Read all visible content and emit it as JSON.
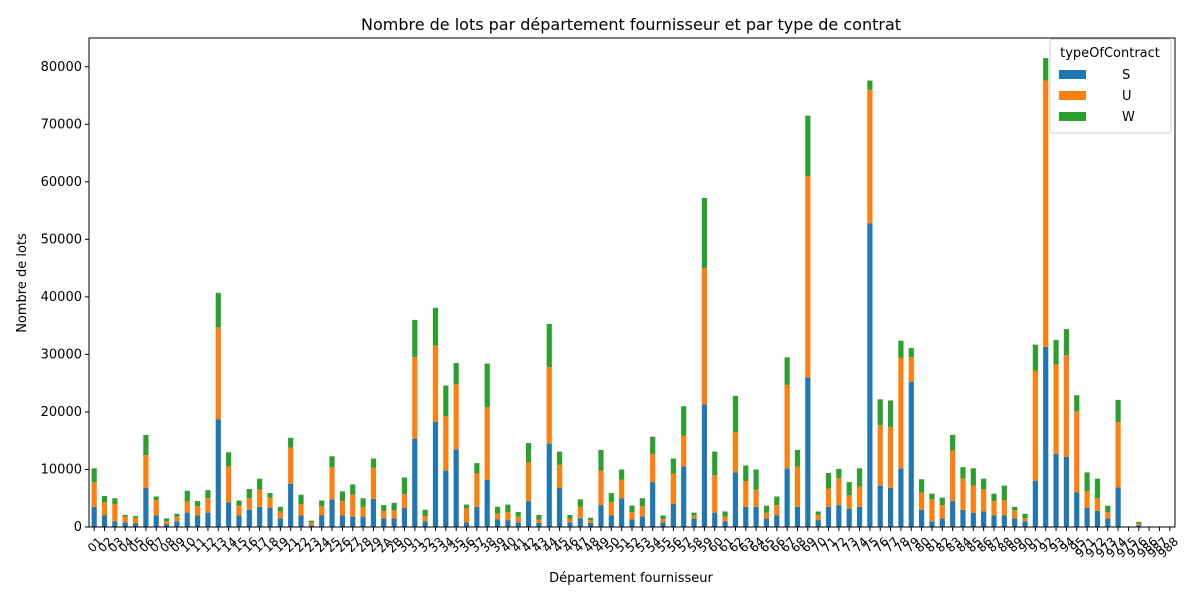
{
  "chart_data": {
    "type": "bar",
    "stacked": true,
    "title": "Nombre de lots par département fournisseur et par type de contrat",
    "xlabel": "Département fournisseur",
    "ylabel": "Nombre de lots",
    "ylim": [
      0,
      85000
    ],
    "yticks": [
      0,
      10000,
      20000,
      30000,
      40000,
      50000,
      60000,
      70000,
      80000
    ],
    "grid": false,
    "legend_title": "typeOfContract",
    "legend_position": "top-right",
    "colors": {
      "S": "#1f77b4",
      "U": "#ff7f0e",
      "W": "#2ca02c"
    },
    "categories": [
      "01",
      "02",
      "03",
      "04",
      "05",
      "06",
      "07",
      "08",
      "09",
      "10",
      "11",
      "12",
      "13",
      "14",
      "15",
      "16",
      "17",
      "18",
      "19",
      "21",
      "22",
      "23",
      "24",
      "25",
      "26",
      "27",
      "28",
      "29",
      "2A",
      "2B",
      "30",
      "31",
      "32",
      "33",
      "34",
      "35",
      "36",
      "37",
      "38",
      "39",
      "40",
      "41",
      "42",
      "43",
      "44",
      "45",
      "46",
      "47",
      "48",
      "49",
      "50",
      "51",
      "52",
      "53",
      "54",
      "55",
      "56",
      "57",
      "58",
      "59",
      "60",
      "61",
      "62",
      "63",
      "64",
      "65",
      "66",
      "67",
      "68",
      "69",
      "70",
      "71",
      "72",
      "73",
      "74",
      "75",
      "76",
      "77",
      "78",
      "79",
      "80",
      "81",
      "82",
      "83",
      "84",
      "85",
      "86",
      "87",
      "88",
      "89",
      "90",
      "91",
      "92",
      "93",
      "94",
      "95",
      "971",
      "972",
      "973",
      "974",
      "975",
      "976",
      "986",
      "987",
      "988"
    ],
    "series": [
      {
        "name": "S",
        "values": [
          3500,
          2000,
          1000,
          800,
          600,
          6800,
          2000,
          500,
          1000,
          2500,
          2000,
          2500,
          18700,
          4300,
          2000,
          3000,
          3500,
          3300,
          1500,
          7500,
          2000,
          300,
          2000,
          4800,
          2000,
          1800,
          1800,
          4900,
          1500,
          1500,
          3300,
          15300,
          1000,
          18300,
          9800,
          13500,
          800,
          3500,
          8200,
          1300,
          1200,
          800,
          4500,
          700,
          14500,
          6800,
          800,
          1500,
          700,
          3800,
          2000,
          5000,
          1300,
          1800,
          7800,
          800,
          4000,
          10500,
          1500,
          21300,
          2500,
          1000,
          9500,
          3500,
          3500,
          1500,
          2000,
          10200,
          3500,
          26000,
          1200,
          3500,
          3800,
          3200,
          3500,
          52800,
          7200,
          6800,
          10200,
          25200,
          3000,
          1000,
          1500,
          4500,
          3000,
          2500,
          2700,
          2000,
          2000,
          1500,
          1000,
          8000,
          31300,
          12700,
          12200,
          6000,
          3300,
          2800,
          1500,
          6900,
          0,
          300,
          0,
          0,
          0
        ]
      },
      {
        "name": "U",
        "values": [
          4300,
          2300,
          3000,
          1000,
          1000,
          5700,
          2700,
          500,
          800,
          1900,
          1600,
          2500,
          16000,
          6200,
          1700,
          2000,
          3000,
          1800,
          1200,
          6300,
          2000,
          500,
          1600,
          5600,
          2500,
          3800,
          1700,
          5400,
          1300,
          1400,
          2400,
          14200,
          900,
          13200,
          9500,
          11300,
          2500,
          5800,
          12600,
          1000,
          1400,
          1000,
          6700,
          600,
          13300,
          4000,
          600,
          2000,
          500,
          6000,
          2300,
          3200,
          1300,
          1800,
          4900,
          600,
          5300,
          5400,
          500,
          23700,
          6500,
          800,
          7000,
          4500,
          3000,
          1000,
          1800,
          14500,
          7000,
          35000,
          900,
          3200,
          4700,
          2300,
          3500,
          23200,
          10500,
          10600,
          19200,
          4300,
          3000,
          3800,
          2300,
          8800,
          5400,
          4700,
          3900,
          2500,
          2700,
          1400,
          500,
          19200,
          46300,
          15500,
          17700,
          14100,
          2900,
          2200,
          1100,
          11300,
          0,
          300,
          0,
          0,
          0
        ]
      },
      {
        "name": "W",
        "values": [
          2400,
          1100,
          1000,
          300,
          300,
          3500,
          600,
          500,
          500,
          1900,
          900,
          1400,
          6000,
          2500,
          900,
          1600,
          1900,
          800,
          800,
          1700,
          1600,
          300,
          1000,
          1900,
          1700,
          1800,
          1500,
          1600,
          1000,
          1300,
          2900,
          6500,
          1100,
          6600,
          5300,
          3700,
          600,
          1800,
          7600,
          1200,
          1300,
          800,
          3400,
          800,
          7500,
          2300,
          700,
          1300,
          400,
          3600,
          1600,
          1800,
          1100,
          1400,
          3000,
          600,
          2600,
          5100,
          500,
          12200,
          4100,
          900,
          6300,
          2700,
          3500,
          1200,
          1500,
          4800,
          2900,
          10500,
          600,
          2700,
          1600,
          2300,
          3200,
          1600,
          4500,
          4600,
          3000,
          1600,
          2300,
          1000,
          1300,
          2700,
          2000,
          3000,
          1800,
          1300,
          2500,
          600,
          800,
          4500,
          3900,
          4300,
          4500,
          2800,
          3300,
          3400,
          1100,
          3900,
          0,
          300,
          0,
          0,
          0
        ]
      }
    ]
  }
}
